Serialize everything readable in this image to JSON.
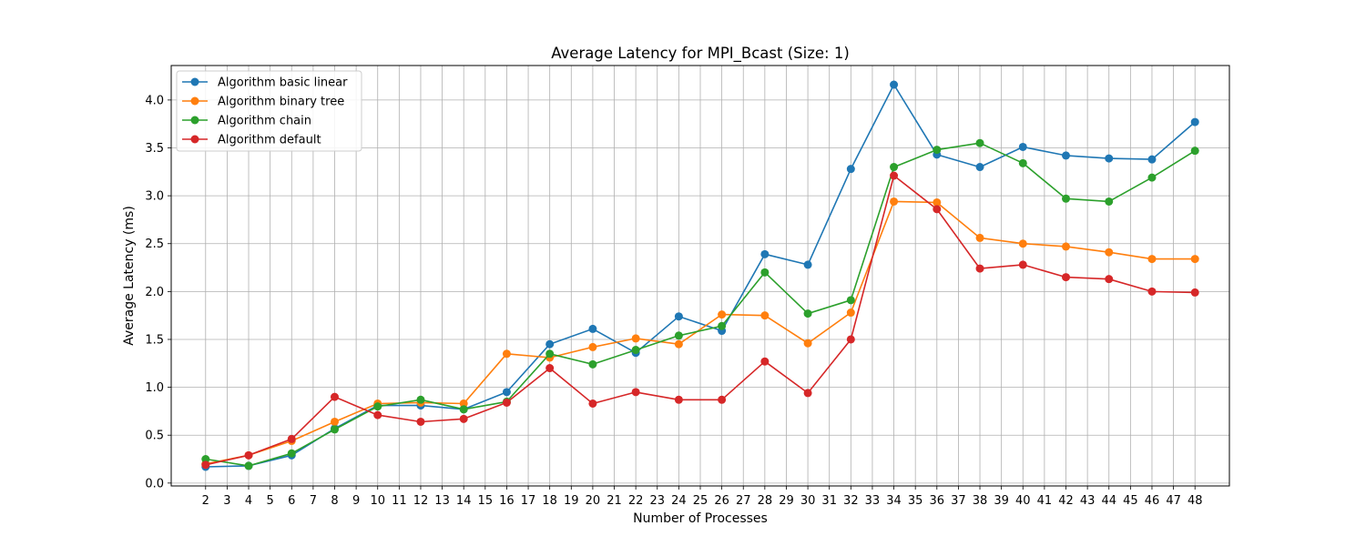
{
  "chart_data": {
    "type": "line",
    "title": "Average Latency for MPI_Bcast (Size: 1)",
    "xlabel": "Number of Processes",
    "ylabel": "Average Latency (ms)",
    "xlim": [
      0.4,
      49.6
    ],
    "ylim": [
      -0.03,
      4.36
    ],
    "x_tick_labels": [
      "2",
      "3",
      "4",
      "5",
      "6",
      "7",
      "8",
      "9",
      "10",
      "11",
      "12",
      "13",
      "14",
      "15",
      "16",
      "17",
      "18",
      "19",
      "20",
      "21",
      "22",
      "23",
      "24",
      "25",
      "26",
      "27",
      "28",
      "29",
      "30",
      "31",
      "32",
      "33",
      "34",
      "35",
      "36",
      "37",
      "38",
      "39",
      "40",
      "41",
      "42",
      "43",
      "44",
      "45",
      "46",
      "47",
      "48"
    ],
    "y_ticks": [
      0.0,
      0.5,
      1.0,
      1.5,
      2.0,
      2.5,
      3.0,
      3.5,
      4.0
    ],
    "y_tick_labels": [
      "0.0",
      "0.5",
      "1.0",
      "1.5",
      "2.0",
      "2.5",
      "3.0",
      "3.5",
      "4.0"
    ],
    "grid": true,
    "legend_position": "top-left",
    "series": [
      {
        "name": "Algorithm basic linear",
        "color": "#1f77b4",
        "x": [
          2,
          4,
          6,
          8,
          10,
          12,
          14,
          16,
          18,
          20,
          22,
          24,
          26,
          28,
          30,
          32,
          34,
          36,
          38,
          40,
          42,
          44,
          46,
          48
        ],
        "values": [
          0.17,
          0.18,
          0.29,
          0.57,
          0.81,
          0.81,
          0.77,
          0.95,
          1.45,
          1.61,
          1.36,
          1.74,
          1.59,
          2.39,
          2.28,
          3.28,
          4.16,
          3.43,
          3.3,
          3.51,
          3.42,
          3.39,
          3.38,
          3.77
        ]
      },
      {
        "name": "Algorithm binary tree",
        "color": "#ff7f0e",
        "x": [
          2,
          4,
          6,
          8,
          10,
          12,
          14,
          16,
          18,
          20,
          22,
          24,
          26,
          28,
          30,
          32,
          34,
          36,
          38,
          40,
          42,
          44,
          46,
          48
        ],
        "values": [
          0.2,
          0.29,
          0.44,
          0.64,
          0.83,
          0.84,
          0.83,
          1.35,
          1.31,
          1.42,
          1.51,
          1.45,
          1.76,
          1.75,
          1.46,
          1.78,
          2.94,
          2.93,
          2.56,
          2.5,
          2.47,
          2.41,
          2.34,
          2.34
        ]
      },
      {
        "name": "Algorithm chain",
        "color": "#2ca02c",
        "x": [
          2,
          4,
          6,
          8,
          10,
          12,
          14,
          16,
          18,
          20,
          22,
          24,
          26,
          28,
          30,
          32,
          34,
          36,
          38,
          40,
          42,
          44,
          46,
          48
        ],
        "values": [
          0.25,
          0.18,
          0.31,
          0.56,
          0.8,
          0.87,
          0.77,
          0.85,
          1.35,
          1.24,
          1.39,
          1.54,
          1.64,
          2.2,
          1.77,
          1.91,
          3.3,
          3.48,
          3.55,
          3.34,
          2.97,
          2.94,
          3.19,
          3.47
        ]
      },
      {
        "name": "Algorithm default",
        "color": "#d62728",
        "x": [
          2,
          4,
          6,
          8,
          10,
          12,
          14,
          16,
          18,
          20,
          22,
          24,
          26,
          28,
          30,
          32,
          34,
          36,
          38,
          40,
          42,
          44,
          46,
          48
        ],
        "values": [
          0.19,
          0.29,
          0.46,
          0.9,
          0.71,
          0.64,
          0.67,
          0.84,
          1.2,
          0.83,
          0.95,
          0.87,
          0.87,
          1.27,
          0.94,
          1.5,
          3.21,
          2.86,
          2.24,
          2.28,
          2.15,
          2.13,
          2.0,
          1.99
        ]
      }
    ]
  }
}
